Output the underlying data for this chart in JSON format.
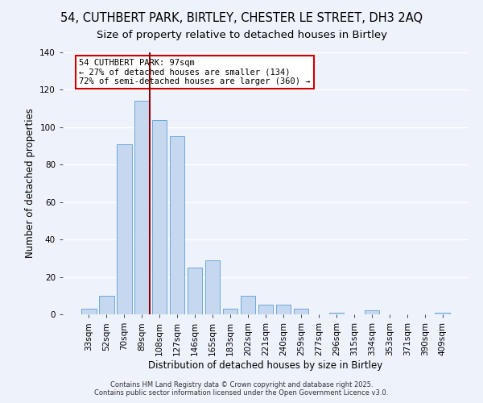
{
  "title": "54, CUTHBERT PARK, BIRTLEY, CHESTER LE STREET, DH3 2AQ",
  "subtitle": "Size of property relative to detached houses in Birtley",
  "xlabel": "Distribution of detached houses by size in Birtley",
  "ylabel": "Number of detached properties",
  "categories": [
    "33sqm",
    "52sqm",
    "70sqm",
    "89sqm",
    "108sqm",
    "127sqm",
    "146sqm",
    "165sqm",
    "183sqm",
    "202sqm",
    "221sqm",
    "240sqm",
    "259sqm",
    "277sqm",
    "296sqm",
    "315sqm",
    "334sqm",
    "353sqm",
    "371sqm",
    "390sqm",
    "409sqm"
  ],
  "values": [
    3,
    10,
    91,
    114,
    104,
    95,
    25,
    29,
    3,
    10,
    5,
    5,
    3,
    0,
    1,
    0,
    2,
    0,
    0,
    0,
    1
  ],
  "bar_color": "#c5d8f0",
  "bar_edge_color": "#6ea8d8",
  "vline_color": "#8b0000",
  "annotation_text": "54 CUTHBERT PARK: 97sqm\n← 27% of detached houses are smaller (134)\n72% of semi-detached houses are larger (360) →",
  "annotation_box_color": "white",
  "annotation_box_edge_color": "#cc0000",
  "footer1": "Contains HM Land Registry data © Crown copyright and database right 2025.",
  "footer2": "Contains public sector information licensed under the Open Government Licence v3.0.",
  "ylim": [
    0,
    140
  ],
  "background_color": "#eef2fb",
  "grid_color": "white",
  "title_fontsize": 10.5,
  "subtitle_fontsize": 9.5,
  "axis_label_fontsize": 8.5,
  "tick_fontsize": 7.5,
  "footer_fontsize": 6.0
}
